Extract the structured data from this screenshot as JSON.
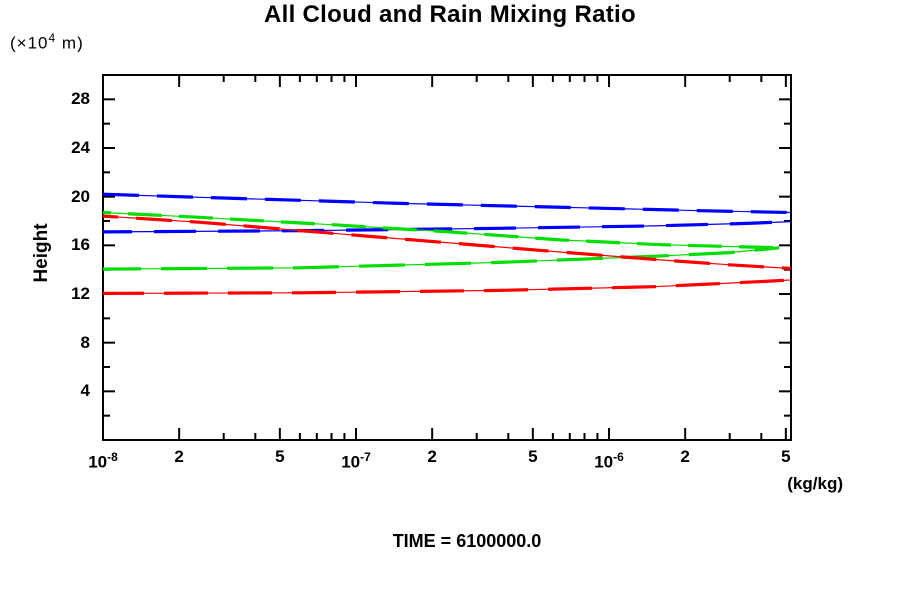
{
  "title": "All Cloud and Rain Mixing Ratio",
  "y_axis": {
    "units_prefix": "(×10",
    "units_sup": "4",
    "units_suffix": " m)",
    "label": "Height"
  },
  "x_axis": {
    "units": "(kg/kg)"
  },
  "footer": {
    "time_caption": "TIME = 6100000.0"
  },
  "chart_data": {
    "type": "line",
    "title": "All Cloud and Rain Mixing Ratio",
    "xlabel": "(kg/kg)",
    "ylabel": "Height (×10^4 m)",
    "x_scale": "log",
    "x_range": [
      1e-08,
      5.24e-06
    ],
    "y_range": [
      0,
      30
    ],
    "grid": false,
    "legend": "none",
    "y_tick_major_step": 4,
    "y_tick_minor_step": 2,
    "y_tick_labels": [
      4,
      8,
      12,
      16,
      20,
      24,
      28
    ],
    "x_tick_labels": [
      {
        "v": 1e-08,
        "main": "10",
        "sup": "-8"
      },
      {
        "v": 2e-08,
        "main": "2"
      },
      {
        "v": 5e-08,
        "main": "5"
      },
      {
        "v": 1e-07,
        "main": "10",
        "sup": "-7"
      },
      {
        "v": 2e-07,
        "main": "2"
      },
      {
        "v": 5e-07,
        "main": "5"
      },
      {
        "v": 1e-06,
        "main": "10",
        "sup": "-6"
      },
      {
        "v": 2e-06,
        "main": "2"
      },
      {
        "v": 5e-06,
        "main": "5"
      }
    ],
    "x_minor_mantissas": [
      3,
      4,
      6,
      7,
      8,
      9
    ],
    "x_major_mantissas": [
      1,
      2,
      5
    ],
    "series": [
      {
        "name": "blue-upper-branch",
        "color": "#0000ff",
        "points": [
          [
            1e-08,
            20.2
          ],
          [
            2.4e-08,
            19.95
          ],
          [
            6e-08,
            19.7
          ],
          [
            1.5e-07,
            19.45
          ],
          [
            3.7e-07,
            19.25
          ],
          [
            9.2e-07,
            19.05
          ],
          [
            2.3e-06,
            18.85
          ],
          [
            5.24e-06,
            18.7
          ]
        ]
      },
      {
        "name": "blue-lower-branch",
        "color": "#0000ff",
        "points": [
          [
            1e-08,
            17.1
          ],
          [
            6e-08,
            17.2
          ],
          [
            3.7e-07,
            17.4
          ],
          [
            1.5e-06,
            17.6
          ],
          [
            3.5e-06,
            17.8
          ],
          [
            5.24e-06,
            17.95
          ]
        ]
      },
      {
        "name": "green-upper-branch",
        "color": "#00dd00",
        "points": [
          [
            1e-08,
            18.7
          ],
          [
            2.4e-08,
            18.3
          ],
          [
            8e-08,
            17.7
          ],
          [
            2.35e-07,
            17.1
          ],
          [
            6.4e-07,
            16.45
          ],
          [
            1.6e-06,
            16.05
          ],
          [
            3e-06,
            15.9
          ],
          [
            4.7e-06,
            15.8
          ]
        ]
      },
      {
        "name": "green-lower-branch",
        "color": "#00dd00",
        "points": [
          [
            1e-08,
            14.05
          ],
          [
            6e-08,
            14.15
          ],
          [
            3.7e-07,
            14.6
          ],
          [
            1.5e-06,
            15.1
          ],
          [
            3e-06,
            15.4
          ],
          [
            4.7e-06,
            15.8
          ]
        ]
      },
      {
        "name": "red-upper-branch",
        "color": "#ff0000",
        "points": [
          [
            1e-08,
            18.4
          ],
          [
            2.4e-08,
            17.9
          ],
          [
            8e-08,
            17.0
          ],
          [
            2.35e-07,
            16.2
          ],
          [
            6.4e-07,
            15.45
          ],
          [
            1.6e-06,
            14.8
          ],
          [
            3e-06,
            14.4
          ],
          [
            5.24e-06,
            14.1
          ]
        ]
      },
      {
        "name": "red-lower-branch",
        "color": "#ff0000",
        "points": [
          [
            1e-08,
            12.05
          ],
          [
            6e-08,
            12.1
          ],
          [
            3.7e-07,
            12.3
          ],
          [
            1.5e-06,
            12.6
          ],
          [
            3e-06,
            12.9
          ],
          [
            5.24e-06,
            13.15
          ]
        ]
      }
    ]
  }
}
